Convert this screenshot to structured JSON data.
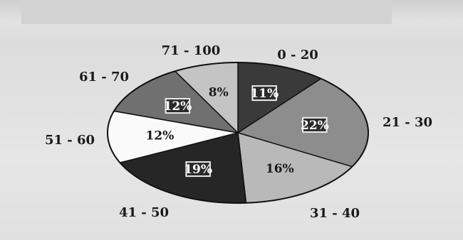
{
  "chart_data": {
    "type": "pie",
    "title": "",
    "categories": [
      "0 - 20",
      "21 - 30",
      "31 - 40",
      "41 - 50",
      "51 - 60",
      "61 - 70",
      "71 - 100"
    ],
    "values": [
      11,
      22,
      16,
      19,
      12,
      12,
      8
    ],
    "value_labels": [
      "11%",
      "22%",
      "16%",
      "19%",
      "12%",
      "12%",
      "8%"
    ],
    "colors": [
      "#3a3a3a",
      "#8d8d8d",
      "#b9b9b9",
      "#262626",
      "#fafafa",
      "#707070",
      "#c4c4c4"
    ],
    "label_text_colors": [
      "#ffffff",
      "#ffffff",
      "#1a1a1a",
      "#ffffff",
      "#1a1a1a",
      "#ffffff",
      "#1a1a1a"
    ],
    "label_boxed": [
      true,
      true,
      false,
      true,
      false,
      true,
      false
    ],
    "start_angle_deg": -90,
    "direction": "clockwise",
    "legend": "none"
  }
}
